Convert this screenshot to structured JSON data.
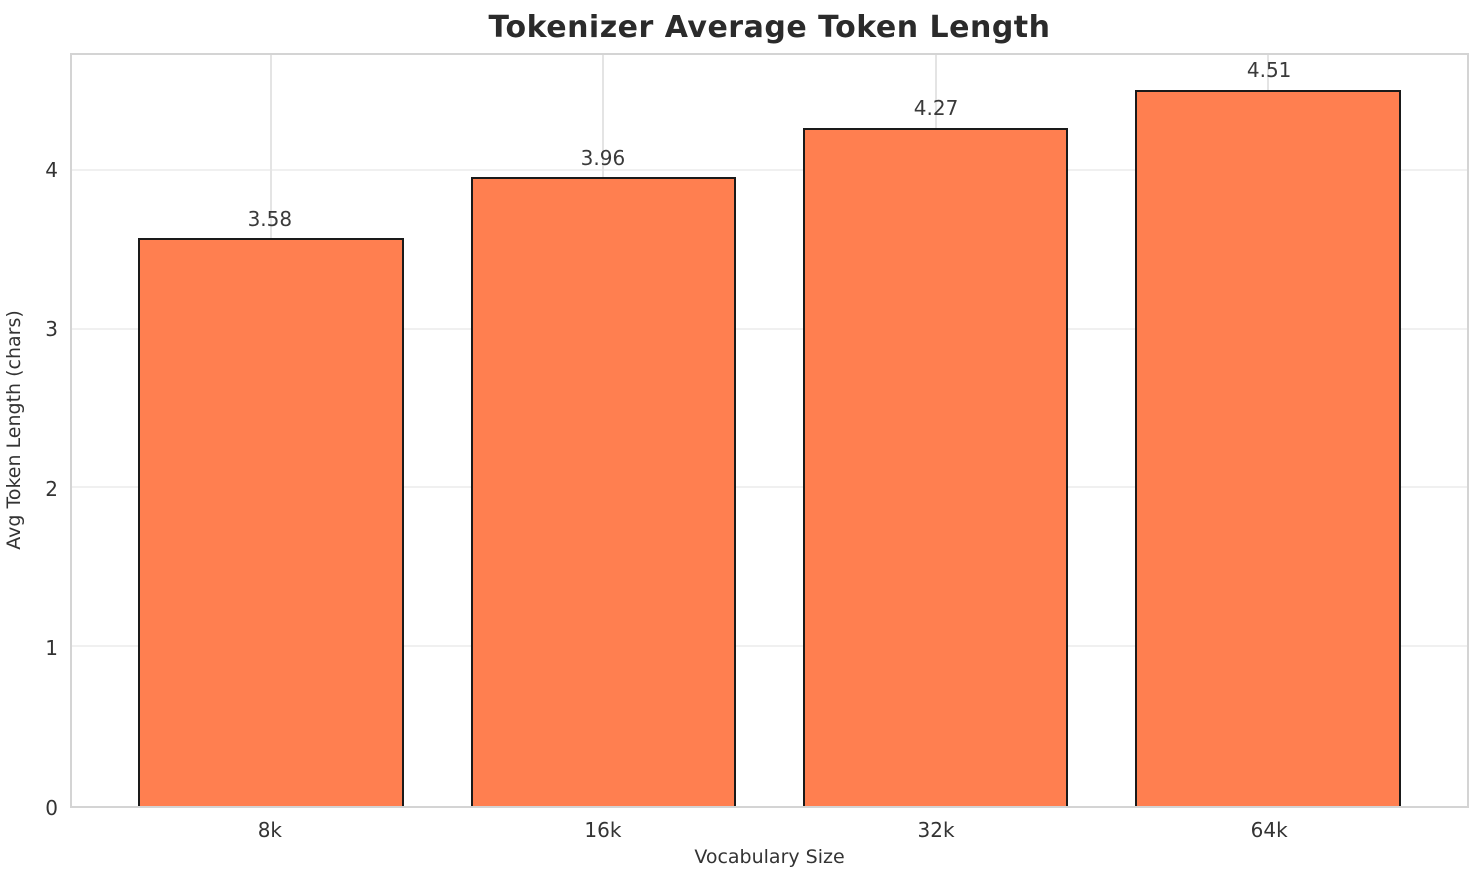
{
  "chart_data": {
    "type": "bar",
    "title": "Tokenizer Average Token Length",
    "xlabel": "Vocabulary Size",
    "ylabel": "Avg Token Length (chars)",
    "categories": [
      "8k",
      "16k",
      "32k",
      "64k"
    ],
    "values": [
      3.58,
      3.96,
      4.27,
      4.51
    ],
    "value_labels": [
      "3.58",
      "3.96",
      "4.27",
      "4.51"
    ],
    "yticks": [
      0,
      1,
      2,
      3,
      4
    ],
    "ylim": [
      0,
      4.73
    ],
    "xlim": [
      -0.6,
      3.6
    ],
    "bar_width": 0.8,
    "grid": true,
    "legend": null,
    "colors": {
      "bar_fill": "#FF7F50",
      "bar_edge": "#1a1a1a",
      "grid_h": "#f0f0f0",
      "grid_v": "#e4e4e4",
      "plot_border": "#d4d4d4",
      "title": "#2b2b2b",
      "tick": "#333333"
    }
  }
}
